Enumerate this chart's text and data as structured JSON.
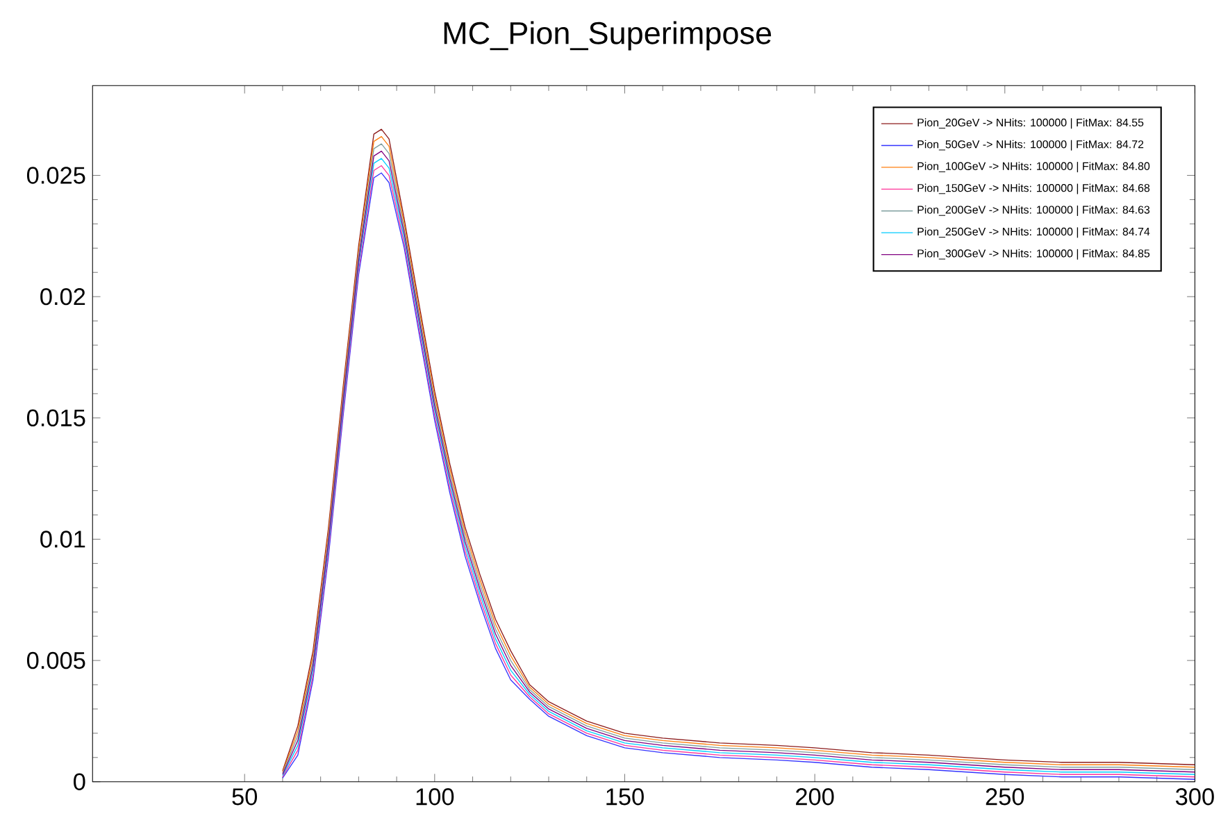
{
  "chart_data": {
    "type": "line",
    "title": "MC_Pion_Superimpose",
    "x": [
      60,
      64,
      68,
      72,
      76,
      80,
      84,
      86,
      88,
      92,
      96,
      100,
      104,
      108,
      112,
      116,
      120,
      125,
      130,
      140,
      150,
      160,
      175,
      190,
      200,
      215,
      230,
      250,
      265,
      280,
      300
    ],
    "series": [
      {
        "name": "Pion_20GeV -> NHits: 100000 | FitMax: 84.55",
        "color": "#8b1a1a",
        "values": [
          0.00045,
          0.0023,
          0.0054,
          0.0104,
          0.0164,
          0.0221,
          0.0267,
          0.0269,
          0.0265,
          0.0232,
          0.0196,
          0.0161,
          0.0131,
          0.0105,
          0.0085,
          0.0067,
          0.0054,
          0.004,
          0.0033,
          0.0025,
          0.002,
          0.0018,
          0.0016,
          0.0015,
          0.0014,
          0.0012,
          0.0011,
          0.0009,
          0.0008,
          0.0008,
          0.0007
        ]
      },
      {
        "name": "Pion_50GeV -> NHits: 100000 | FitMax: 84.72",
        "color": "#3333ff",
        "values": [
          0.00015,
          0.0011,
          0.0042,
          0.0092,
          0.0152,
          0.0209,
          0.0249,
          0.0251,
          0.0247,
          0.022,
          0.0184,
          0.0149,
          0.0119,
          0.0093,
          0.0073,
          0.0055,
          0.0042,
          0.0034,
          0.0027,
          0.0019,
          0.0014,
          0.0012,
          0.001,
          0.0009,
          0.0008,
          0.0006,
          0.0005,
          0.0003,
          0.0002,
          0.0002,
          0.0001
        ]
      },
      {
        "name": "Pion_100GeV -> NHits: 100000 | FitMax: 84.80",
        "color": "#ff7f0e",
        "values": [
          0.0004,
          0.0021,
          0.0052,
          0.0102,
          0.0162,
          0.0219,
          0.0264,
          0.0266,
          0.0262,
          0.023,
          0.0194,
          0.0159,
          0.0129,
          0.0103,
          0.0083,
          0.0065,
          0.0052,
          0.0039,
          0.0032,
          0.0024,
          0.0019,
          0.0017,
          0.0015,
          0.0014,
          0.0013,
          0.0011,
          0.001,
          0.0008,
          0.0007,
          0.0007,
          0.0006
        ]
      },
      {
        "name": "Pion_150GeV -> NHits: 100000 | FitMax: 84.68",
        "color": "#ff3399",
        "values": [
          0.0002,
          0.0013,
          0.0044,
          0.0094,
          0.0154,
          0.0211,
          0.0252,
          0.0254,
          0.025,
          0.0222,
          0.0186,
          0.0151,
          0.0121,
          0.0095,
          0.0075,
          0.0057,
          0.0044,
          0.0035,
          0.0028,
          0.002,
          0.0015,
          0.0013,
          0.0011,
          0.001,
          0.0009,
          0.0007,
          0.0006,
          0.0004,
          0.0003,
          0.0003,
          0.0002
        ]
      },
      {
        "name": "Pion_200GeV -> NHits: 100000 | FitMax: 84.63",
        "color": "#7f9f9f",
        "values": [
          0.00035,
          0.0019,
          0.005,
          0.01,
          0.016,
          0.0217,
          0.0261,
          0.0263,
          0.0259,
          0.0228,
          0.0192,
          0.0157,
          0.0127,
          0.0101,
          0.0081,
          0.0063,
          0.005,
          0.0038,
          0.0031,
          0.0023,
          0.0018,
          0.0016,
          0.0014,
          0.0013,
          0.0012,
          0.001,
          0.0009,
          0.0007,
          0.0006,
          0.0006,
          0.0005
        ]
      },
      {
        "name": "Pion_250GeV -> NHits: 100000 | FitMax: 84.74",
        "color": "#00ccff",
        "values": [
          0.00025,
          0.0015,
          0.0046,
          0.0096,
          0.0156,
          0.0213,
          0.0255,
          0.0257,
          0.0253,
          0.0224,
          0.0188,
          0.0153,
          0.0123,
          0.0097,
          0.0077,
          0.0059,
          0.0046,
          0.0036,
          0.0029,
          0.0021,
          0.0016,
          0.0014,
          0.0012,
          0.0011,
          0.001,
          0.0008,
          0.0007,
          0.0005,
          0.0004,
          0.0004,
          0.0003
        ]
      },
      {
        "name": "Pion_300GeV -> NHits: 100000 | FitMax: 84.85",
        "color": "#800080",
        "values": [
          0.0003,
          0.0017,
          0.0048,
          0.0098,
          0.0158,
          0.0215,
          0.0258,
          0.026,
          0.0256,
          0.0226,
          0.019,
          0.0155,
          0.0125,
          0.0099,
          0.0079,
          0.0061,
          0.0048,
          0.0037,
          0.003,
          0.0022,
          0.0017,
          0.0015,
          0.0013,
          0.0012,
          0.0011,
          0.0009,
          0.0008,
          0.0006,
          0.0005,
          0.0005,
          0.0004
        ]
      }
    ],
    "xlim": [
      10,
      300
    ],
    "ylim": [
      0,
      0.0287
    ],
    "xticks": [
      50,
      100,
      150,
      200,
      250,
      300
    ],
    "yticks": [
      0,
      0.005,
      0.01,
      0.015,
      0.02,
      0.025
    ],
    "grid": false,
    "legend": "top right",
    "line_style": "solid"
  }
}
